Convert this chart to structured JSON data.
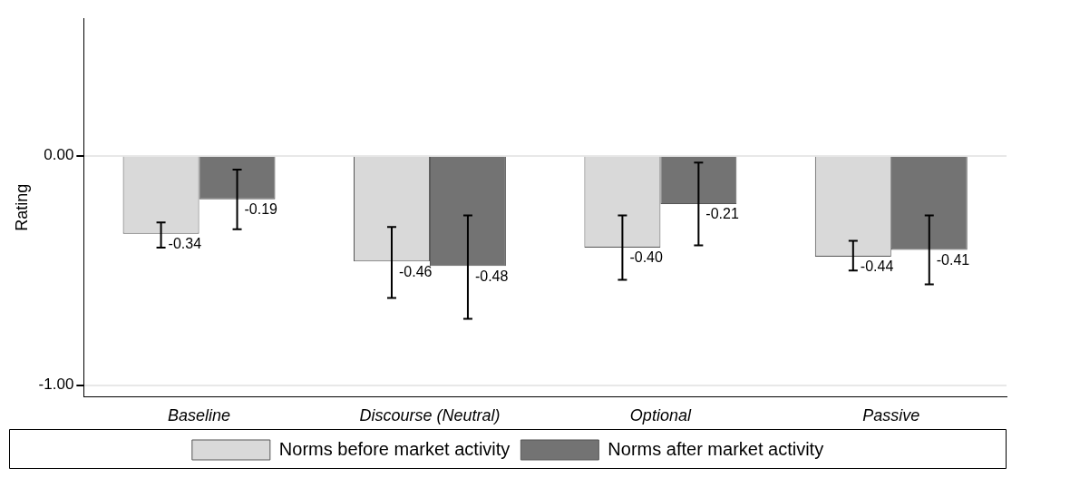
{
  "chart_data": {
    "type": "bar",
    "ylabel": "Rating",
    "categories": [
      "Baseline",
      "Discourse (Neutral)",
      "Optional",
      "Passive"
    ],
    "series": [
      {
        "name": "Norms before market activity",
        "color": "#d9d9d9",
        "values": [
          -0.34,
          -0.46,
          -0.4,
          -0.44
        ],
        "errors": [
          [
            -0.4,
            -0.29
          ],
          [
            -0.62,
            -0.31
          ],
          [
            -0.54,
            -0.26
          ],
          [
            -0.5,
            -0.37
          ]
        ],
        "value_labels": [
          "-0.34",
          "-0.46",
          "-0.40",
          "-0.44"
        ]
      },
      {
        "name": "Norms after market activity",
        "color": "#737373",
        "values": [
          -0.19,
          -0.48,
          -0.21,
          -0.41
        ],
        "errors": [
          [
            -0.32,
            -0.06
          ],
          [
            -0.71,
            -0.26
          ],
          [
            -0.39,
            -0.03
          ],
          [
            -0.56,
            -0.26
          ]
        ],
        "value_labels": [
          "-0.19",
          "-0.48",
          "-0.21",
          "-0.41"
        ]
      }
    ],
    "ylim": [
      -1.05,
      0.6
    ],
    "yticks": [
      {
        "value": 0,
        "label": "0.00"
      },
      {
        "value": -1,
        "label": "-1.00"
      }
    ],
    "grid": "y",
    "legend": "bottom"
  }
}
